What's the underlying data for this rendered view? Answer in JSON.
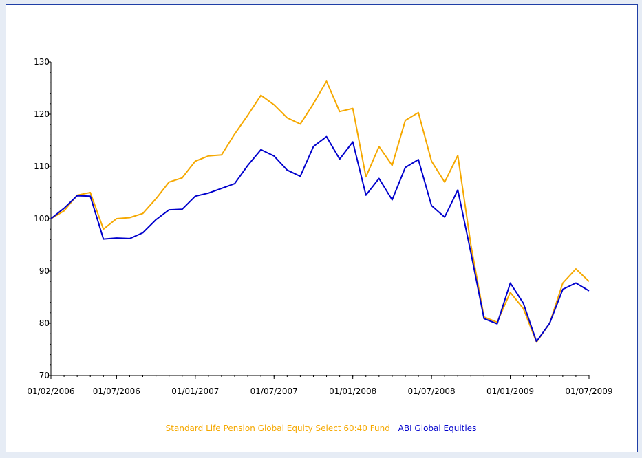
{
  "chart_data": {
    "type": "line",
    "title": "",
    "xlabel": "",
    "ylabel": "",
    "ylim": [
      70,
      130
    ],
    "yticks": [
      70,
      80,
      90,
      100,
      110,
      120,
      130
    ],
    "xticks": [
      "01/02/2006",
      "01/07/2006",
      "01/01/2007",
      "01/07/2007",
      "01/01/2008",
      "01/07/2008",
      "01/01/2009",
      "01/07/2009"
    ],
    "x": [
      "2006-02",
      "2006-03",
      "2006-04",
      "2006-05",
      "2006-06",
      "2006-07",
      "2006-08",
      "2006-09",
      "2006-10",
      "2006-11",
      "2006-12",
      "2007-01",
      "2007-02",
      "2007-03",
      "2007-04",
      "2007-05",
      "2007-06",
      "2007-07",
      "2007-08",
      "2007-09",
      "2007-10",
      "2007-11",
      "2007-12",
      "2008-01",
      "2008-02",
      "2008-03",
      "2008-04",
      "2008-05",
      "2008-06",
      "2008-07",
      "2008-08",
      "2008-09",
      "2008-10",
      "2008-11",
      "2008-12",
      "2009-01",
      "2009-02",
      "2009-03",
      "2009-04",
      "2009-05",
      "2009-06",
      "2009-07"
    ],
    "series": [
      {
        "name": "Standard Life Pension Global Equity Select 60:40 Fund",
        "color": "#f5a800",
        "values": [
          100,
          101.5,
          104.5,
          105,
          98,
          100,
          100.2,
          101,
          103.8,
          107,
          107.8,
          111,
          112,
          112.2,
          116.2,
          119.8,
          123.6,
          121.8,
          119.3,
          118.1,
          122,
          126.3,
          120.5,
          121.1,
          108,
          113.8,
          110.2,
          118.8,
          120.3,
          111,
          107,
          112.1,
          95,
          81.2,
          80.2,
          85.9,
          82.8,
          76.4,
          80,
          87.7,
          90.4,
          88
        ]
      },
      {
        "name": "ABI Global Equities",
        "color": "#0000cc",
        "values": [
          100,
          102,
          104.4,
          104.3,
          96.1,
          96.3,
          96.2,
          97.3,
          99.8,
          101.7,
          101.8,
          104.3,
          104.9,
          105.8,
          106.7,
          110.2,
          113.2,
          112,
          109.3,
          108.1,
          113.8,
          115.7,
          111.4,
          114.7,
          104.5,
          107.7,
          103.6,
          109.8,
          111.3,
          102.5,
          100.3,
          105.5,
          93.5,
          80.9,
          79.9,
          87.7,
          83.8,
          76.5,
          80,
          86.5,
          87.7,
          86.2
        ]
      }
    ],
    "grid": false,
    "legend_position": "bottom"
  }
}
